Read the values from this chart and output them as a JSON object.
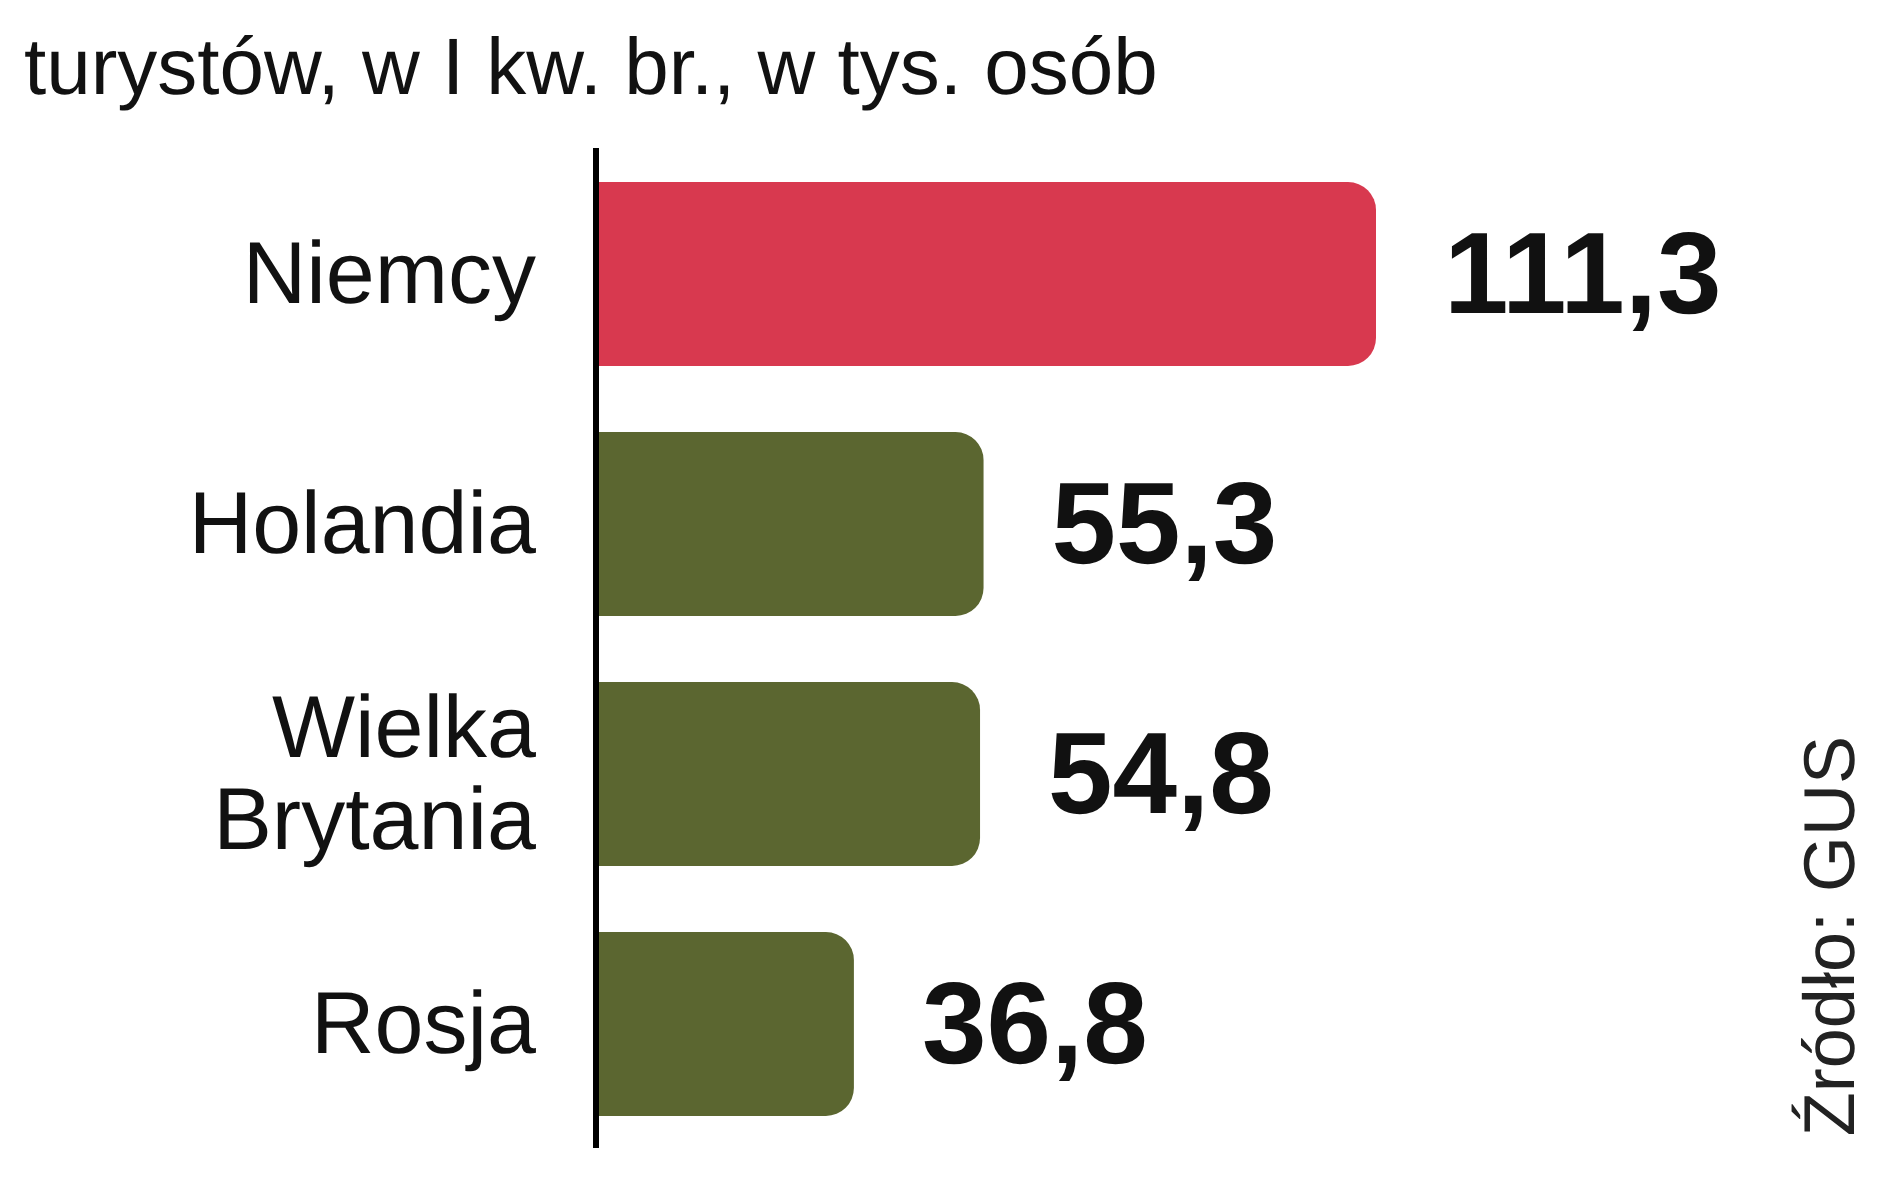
{
  "chart_data": {
    "type": "bar",
    "orientation": "horizontal",
    "title": "turystów, w I kw. br., w tys. osób",
    "categories": [
      "Niemcy",
      "Holandia",
      "Wielka Brytania",
      "Rosja"
    ],
    "values": [
      111.3,
      55.3,
      54.8,
      36.8
    ],
    "colors": [
      "#d8394f",
      "#5b6630",
      "#5b6630",
      "#5b6630"
    ],
    "value_labels": [
      "111,3",
      "55,3",
      "54,8",
      "36,8"
    ],
    "tick_labels": "y",
    "legend": false,
    "annotations": [
      "Źródło: GUS"
    ]
  }
}
